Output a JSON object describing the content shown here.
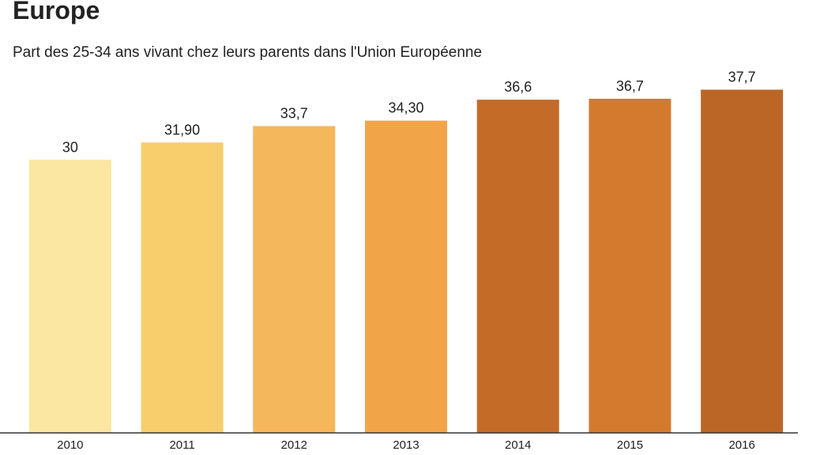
{
  "chart_data": {
    "type": "bar",
    "title": "Europe",
    "subtitle": "Part des 25-34 ans vivant chez leurs parents dans l'Union Européenne",
    "categories": [
      "2010",
      "2011",
      "2012",
      "2013",
      "2014",
      "2015",
      "2016"
    ],
    "values": [
      30,
      31.9,
      33.7,
      34.3,
      36.6,
      36.7,
      37.7
    ],
    "value_labels": [
      "30",
      "31,90",
      "33,7",
      "34,30",
      "36,6",
      "36,7",
      "37,7"
    ],
    "colors": [
      "#fbe7a1",
      "#f8cd6c",
      "#f5b75c",
      "#f2a548",
      "#c56b28",
      "#d47a2e",
      "#bb6626"
    ],
    "ylim": [
      0,
      40
    ]
  }
}
